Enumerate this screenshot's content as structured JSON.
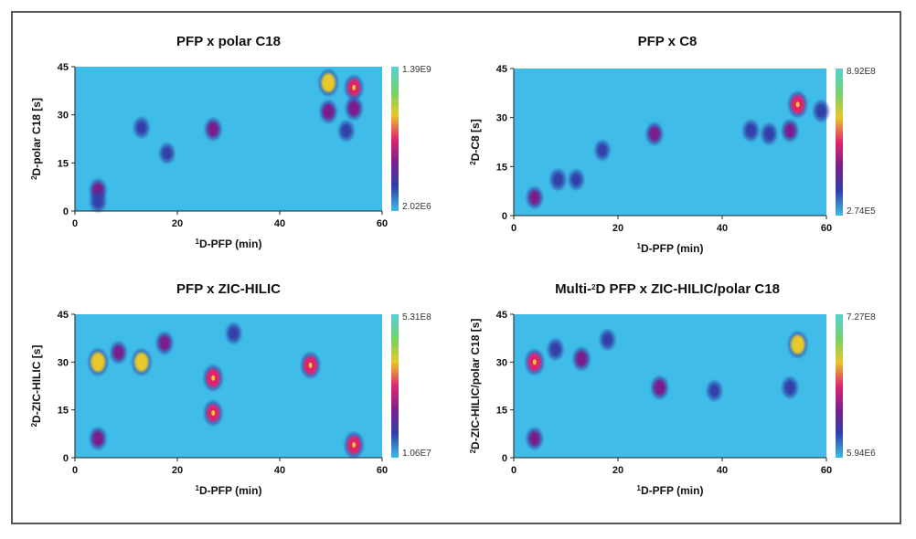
{
  "colormap": [
    "#3fbde8",
    "#3040a8",
    "#7a1f8c",
    "#e0246e",
    "#e8c82a",
    "#6fd36a",
    "#57cfd6"
  ],
  "chart_data": [
    {
      "type": "heatmap",
      "title": "PFP x polar C18",
      "xlabel": "D-PFP (min)",
      "xlabel_sup": "1",
      "ylabel": "D-polar C18 [s]",
      "ylabel_sup": "2",
      "xlim": [
        0,
        60
      ],
      "ylim": [
        0,
        45
      ],
      "xticks": [
        0,
        20,
        40,
        60
      ],
      "yticks": [
        0,
        15,
        30,
        45
      ],
      "colorbar": {
        "max": "1.39E9",
        "min": "2.02E6"
      },
      "peaks": [
        {
          "x": 4.5,
          "y": 6.5,
          "intensity": 0.55
        },
        {
          "x": 4.5,
          "y": 3.0,
          "intensity": 0.45
        },
        {
          "x": 13,
          "y": 26,
          "intensity": 0.4
        },
        {
          "x": 18,
          "y": 18,
          "intensity": 0.35
        },
        {
          "x": 27,
          "y": 25.5,
          "intensity": 0.55
        },
        {
          "x": 49.5,
          "y": 40,
          "intensity": 0.9
        },
        {
          "x": 49.5,
          "y": 31,
          "intensity": 0.6
        },
        {
          "x": 54.5,
          "y": 38.5,
          "intensity": 0.75
        },
        {
          "x": 54.5,
          "y": 32,
          "intensity": 0.6
        },
        {
          "x": 53,
          "y": 25,
          "intensity": 0.4
        }
      ]
    },
    {
      "type": "heatmap",
      "title": "PFP x C8",
      "xlabel": "D-PFP (min)",
      "xlabel_sup": "1",
      "ylabel": "D-C8 [s]",
      "ylabel_sup": "2",
      "xlim": [
        0,
        60
      ],
      "ylim": [
        0,
        45
      ],
      "xticks": [
        0,
        20,
        40,
        60
      ],
      "yticks": [
        0,
        15,
        30,
        45
      ],
      "colorbar": {
        "max": "8.92E8",
        "min": "2.74E5"
      },
      "peaks": [
        {
          "x": 4,
          "y": 5.5,
          "intensity": 0.5
        },
        {
          "x": 8.5,
          "y": 11,
          "intensity": 0.45
        },
        {
          "x": 12,
          "y": 11,
          "intensity": 0.35
        },
        {
          "x": 17,
          "y": 20,
          "intensity": 0.35
        },
        {
          "x": 27,
          "y": 25,
          "intensity": 0.55
        },
        {
          "x": 45.5,
          "y": 26,
          "intensity": 0.45
        },
        {
          "x": 49,
          "y": 25,
          "intensity": 0.45
        },
        {
          "x": 54.5,
          "y": 34,
          "intensity": 0.85
        },
        {
          "x": 53,
          "y": 26,
          "intensity": 0.5
        },
        {
          "x": 59,
          "y": 32,
          "intensity": 0.45
        }
      ]
    },
    {
      "type": "heatmap",
      "title": "PFP x ZIC-HILIC",
      "xlabel": "D-PFP (min)",
      "xlabel_sup": "1",
      "ylabel": "D-ZIC-HILIC [s]",
      "ylabel_sup": "2",
      "xlim": [
        0,
        60
      ],
      "ylim": [
        0,
        45
      ],
      "xticks": [
        0,
        20,
        40,
        60
      ],
      "yticks": [
        0,
        15,
        30,
        45
      ],
      "colorbar": {
        "max": "5.31E8",
        "min": "1.06E7"
      },
      "peaks": [
        {
          "x": 4.5,
          "y": 30,
          "intensity": 0.95
        },
        {
          "x": 4.5,
          "y": 6,
          "intensity": 0.55
        },
        {
          "x": 8.5,
          "y": 33,
          "intensity": 0.5
        },
        {
          "x": 13,
          "y": 30,
          "intensity": 0.9
        },
        {
          "x": 17.5,
          "y": 36,
          "intensity": 0.55
        },
        {
          "x": 27,
          "y": 25,
          "intensity": 0.85
        },
        {
          "x": 27,
          "y": 14,
          "intensity": 0.75
        },
        {
          "x": 31,
          "y": 39,
          "intensity": 0.4
        },
        {
          "x": 46,
          "y": 29,
          "intensity": 0.85
        },
        {
          "x": 54.5,
          "y": 4,
          "intensity": 0.85
        }
      ]
    },
    {
      "type": "heatmap",
      "title": "Multi-D PFP x ZIC-HILIC/polar C18",
      "title_parts": [
        "Multi-",
        "2",
        "D PFP x ZIC-HILIC/polar C18"
      ],
      "xlabel": "D-PFP (min)",
      "xlabel_sup": "1",
      "ylabel": "D-ZIC-HILIC/polar C18 [s]",
      "ylabel_sup": "2",
      "xlim": [
        0,
        60
      ],
      "ylim": [
        0,
        45
      ],
      "xticks": [
        0,
        20,
        40,
        60
      ],
      "yticks": [
        0,
        15,
        30,
        45
      ],
      "colorbar": {
        "max": "7.27E8",
        "min": "5.94E6"
      },
      "peaks": [
        {
          "x": 4,
          "y": 30,
          "intensity": 0.8
        },
        {
          "x": 4,
          "y": 6,
          "intensity": 0.5
        },
        {
          "x": 8,
          "y": 34,
          "intensity": 0.45
        },
        {
          "x": 13,
          "y": 31,
          "intensity": 0.6
        },
        {
          "x": 18,
          "y": 37,
          "intensity": 0.4
        },
        {
          "x": 28,
          "y": 22,
          "intensity": 0.6
        },
        {
          "x": 38.5,
          "y": 21,
          "intensity": 0.35
        },
        {
          "x": 54.5,
          "y": 35.5,
          "intensity": 0.9
        },
        {
          "x": 53,
          "y": 22,
          "intensity": 0.45
        }
      ]
    }
  ]
}
